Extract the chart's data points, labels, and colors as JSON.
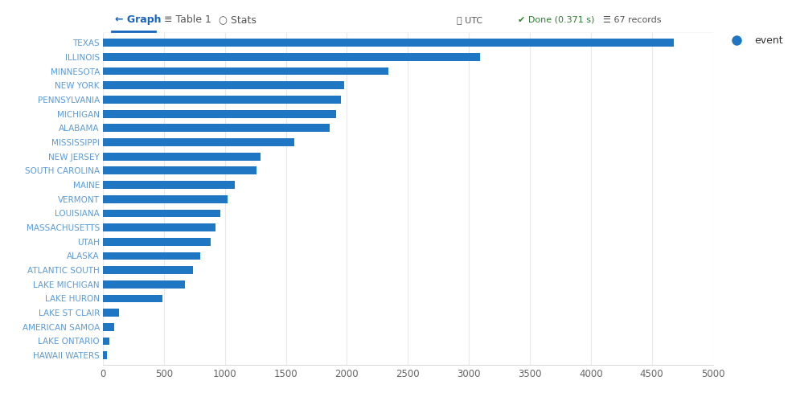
{
  "categories": [
    "TEXAS",
    "ILLINOIS",
    "MINNESOTA",
    "NEW YORK",
    "PENNSYLVANIA",
    "MICHIGAN",
    "ALABAMA",
    "MISSISSIPPI",
    "NEW JERSEY",
    "SOUTH CAROLINA",
    "MAINE",
    "VERMONT",
    "LOUISIANA",
    "MASSACHUSETTS",
    "UTAH",
    "ALASKA",
    "ATLANTIC SOUTH",
    "LAKE MICHIGAN",
    "LAKE HURON",
    "LAKE ST CLAIR",
    "AMERICAN SAMOA",
    "LAKE ONTARIO",
    "HAWAII WATERS"
  ],
  "values": [
    4680,
    3090,
    2340,
    1980,
    1950,
    1910,
    1860,
    1570,
    1290,
    1260,
    1080,
    1020,
    960,
    920,
    880,
    800,
    740,
    670,
    490,
    130,
    90,
    55,
    30
  ],
  "bar_color": "#1f77c4",
  "background_color": "#ffffff",
  "xlim": [
    0,
    5000
  ],
  "xticks": [
    0,
    500,
    1000,
    1500,
    2000,
    2500,
    3000,
    3500,
    4000,
    4500,
    5000
  ],
  "legend_label": "event",
  "legend_color": "#1f77c4",
  "tick_color": "#5b9bd5",
  "grid_color": "#e8e8e8",
  "bar_height": 0.55,
  "top_bar_height": 0.08,
  "top_bar_color": "#ffffff",
  "top_bar_border": "#dddddd",
  "header_texts": [
    "Graph",
    "Table 1",
    "Stats"
  ],
  "header_icons_right": "UTC    Done (0.371 s)    67 records",
  "header_active_color": "#1f6fbf",
  "header_inactive_color": "#555555"
}
